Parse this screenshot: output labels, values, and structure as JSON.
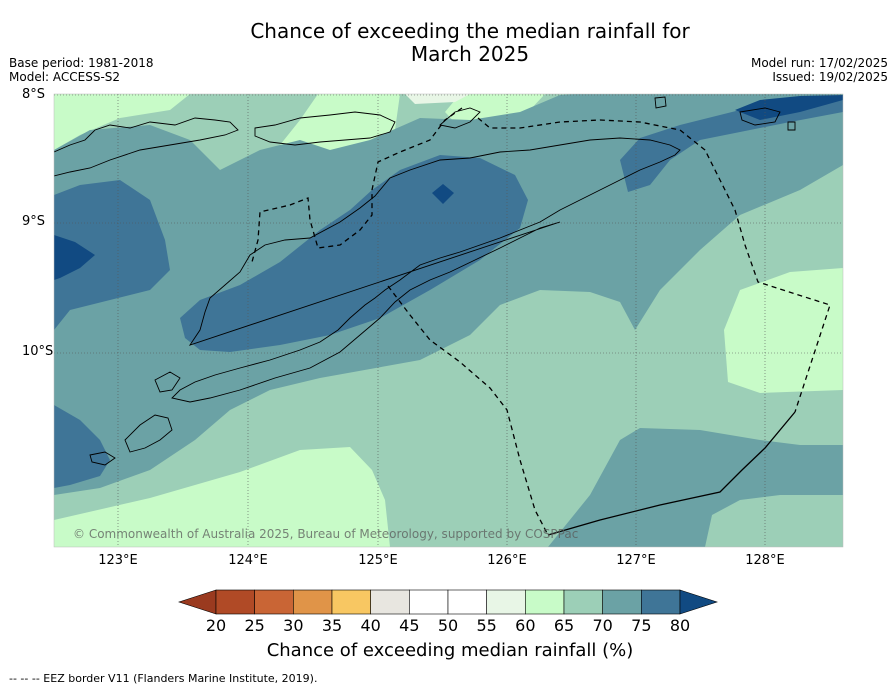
{
  "title": "Chance of exceeding the median rainfall for",
  "title_line2": "March 2025",
  "meta_left": [
    "Base period: 1981-2018",
    "Model: ACCESS-S2"
  ],
  "meta_right": [
    "Model run: 17/02/2025",
    "Issued: 19/02/2025"
  ],
  "lat_labels": [
    "8°S",
    "9°S",
    "10°S"
  ],
  "lon_labels": [
    "123°E",
    "124°E",
    "125°E",
    "126°E",
    "127°E",
    "128°E"
  ],
  "copyright": "© Commonwealth of Australia 2025, Bureau of Meteorology, supported by COSPPac",
  "colorbar": {
    "ticks": [
      "20",
      "25",
      "30",
      "35",
      "40",
      "45",
      "50",
      "55",
      "60",
      "65",
      "70",
      "75",
      "80"
    ],
    "colors": [
      "#b04a26",
      "#c96535",
      "#e09448",
      "#f8c762",
      "#e8e6e0",
      "#ffffff",
      "#ffffff",
      "#e8f6e6",
      "#c8fbc8",
      "#9ccfb7",
      "#6ba2a5",
      "#3f7597"
    ],
    "under_color": "#9a3a1f",
    "over_color": "#114a82",
    "label": "Chance of exceeding median rainfall (%)"
  },
  "footnote": "--  --  -- EEZ border V11 (Flanders Marine Institute, 2019).",
  "map": {
    "extent_lon": [
      122.5,
      128.6
    ],
    "extent_lat": [
      -8.0,
      -11.5
    ],
    "palette": {
      "p55_60": "#e8f6e6",
      "p60_65": "#c8fbc8",
      "p65_70": "#9ccfb7",
      "p70_75": "#6ba2a5",
      "p75_80": "#3f7597",
      "p80": "#114a82"
    }
  }
}
